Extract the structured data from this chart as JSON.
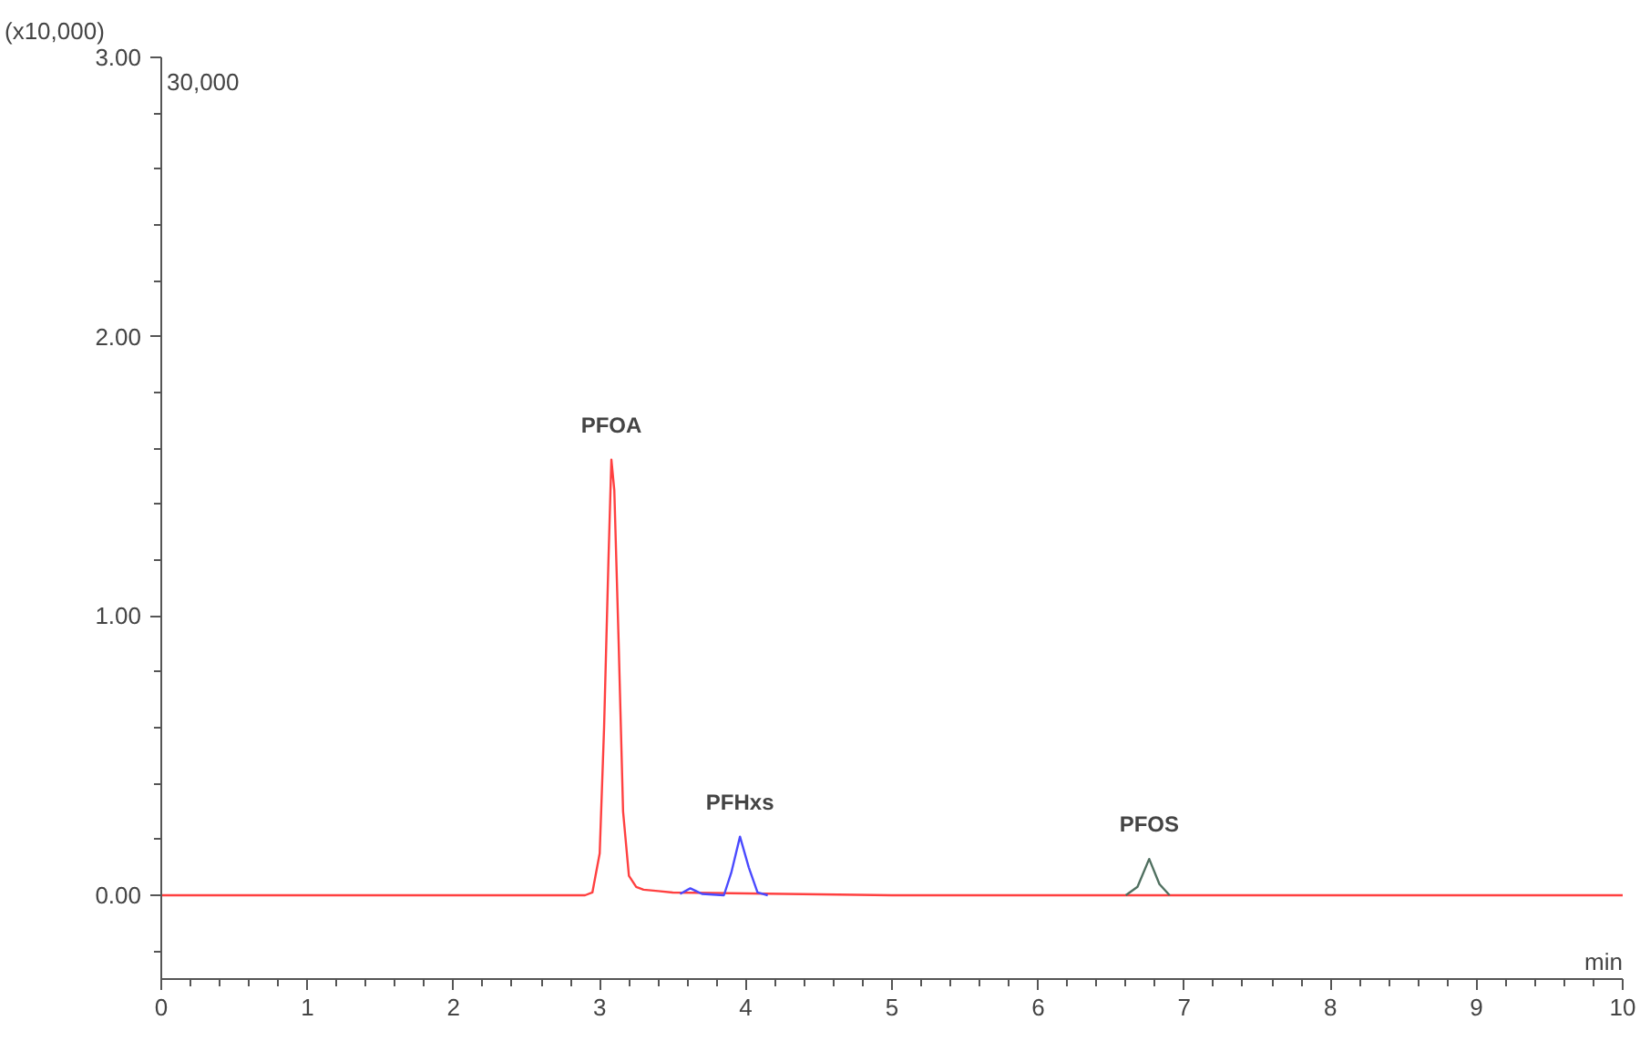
{
  "chart_data": {
    "type": "line",
    "xlabel": "min",
    "annotations": [
      "(x10,000)",
      "30,000"
    ],
    "xlim": [
      0,
      10
    ],
    "ylim": [
      -0.3,
      3.0
    ],
    "xticks": [
      0,
      1,
      2,
      3,
      4,
      5,
      6,
      7,
      8,
      9,
      10,
      {
        "value": 0.2,
        "label": null
      },
      {
        "value": 0.4,
        "label": null
      },
      {
        "value": 0.6,
        "label": null
      },
      {
        "value": 0.8,
        "label": null
      },
      {
        "value": 1.2,
        "label": null
      },
      {
        "value": 1.4,
        "label": null
      },
      {
        "value": 1.6,
        "label": null
      },
      {
        "value": 1.8,
        "label": null
      },
      {
        "value": 2.2,
        "label": null
      },
      {
        "value": 2.4,
        "label": null
      },
      {
        "value": 2.6,
        "label": null
      },
      {
        "value": 2.8,
        "label": null
      },
      {
        "value": 3.2,
        "label": null
      },
      {
        "value": 3.4,
        "label": null
      },
      {
        "value": 3.6,
        "label": null
      },
      {
        "value": 3.8,
        "label": null
      },
      {
        "value": 4.2,
        "label": null
      },
      {
        "value": 4.4,
        "label": null
      },
      {
        "value": 4.6,
        "label": null
      },
      {
        "value": 4.8,
        "label": null
      },
      {
        "value": 5.2,
        "label": null
      },
      {
        "value": 5.4,
        "label": null
      },
      {
        "value": 5.6,
        "label": null
      },
      {
        "value": 5.8,
        "label": null
      },
      {
        "value": 6.2,
        "label": null
      },
      {
        "value": 6.4,
        "label": null
      },
      {
        "value": 6.6,
        "label": null
      },
      {
        "value": 6.8,
        "label": null
      },
      {
        "value": 7.2,
        "label": null
      },
      {
        "value": 7.4,
        "label": null
      },
      {
        "value": 7.6,
        "label": null
      },
      {
        "value": 7.8,
        "label": null
      },
      {
        "value": 8.2,
        "label": null
      },
      {
        "value": 8.4,
        "label": null
      },
      {
        "value": 8.6,
        "label": null
      },
      {
        "value": 8.8,
        "label": null
      },
      {
        "value": 9.2,
        "label": null
      },
      {
        "value": 9.4,
        "label": null
      },
      {
        "value": 9.6,
        "label": null
      },
      {
        "value": 9.8,
        "label": null
      }
    ],
    "yticks": [
      {
        "value": 0,
        "label": "0.00"
      },
      {
        "value": 1,
        "label": "1.00"
      },
      {
        "value": 2,
        "label": "2.00"
      },
      {
        "value": 3,
        "label": "3.00"
      },
      {
        "value": -0.2,
        "label": null
      },
      {
        "value": 0.2,
        "label": null
      },
      {
        "value": 0.4,
        "label": null
      },
      {
        "value": 0.6,
        "label": null
      },
      {
        "value": 0.8,
        "label": null
      },
      {
        "value": 1.2,
        "label": null
      },
      {
        "value": 1.4,
        "label": null
      },
      {
        "value": 1.6,
        "label": null
      },
      {
        "value": 1.8,
        "label": null
      },
      {
        "value": 2.2,
        "label": null
      },
      {
        "value": 2.4,
        "label": null
      },
      {
        "value": 2.6,
        "label": null
      },
      {
        "value": 2.8,
        "label": null
      }
    ],
    "grid": false,
    "marker": "none",
    "line_style": "solid",
    "series": [
      {
        "name": "PFOA",
        "color": "#ff4040",
        "x": [
          0,
          1,
          2,
          2.9,
          2.95,
          3.0,
          3.03,
          3.06,
          3.08,
          3.1,
          3.13,
          3.16,
          3.2,
          3.25,
          3.3,
          3.4,
          3.5,
          5,
          6,
          7,
          8,
          9,
          10
        ],
        "values": [
          0,
          0,
          0,
          0,
          0.01,
          0.15,
          0.6,
          1.2,
          1.56,
          1.45,
          0.9,
          0.3,
          0.07,
          0.03,
          0.02,
          0.015,
          0.01,
          0,
          0,
          0,
          0,
          0,
          0
        ]
      },
      {
        "name": "PFHxs",
        "color": "#4a4aff",
        "x": [
          3.55,
          3.62,
          3.7,
          3.85,
          3.9,
          3.96,
          4.02,
          4.08,
          4.15
        ],
        "values": [
          0.005,
          0.025,
          0.005,
          0,
          0.08,
          0.21,
          0.1,
          0.01,
          0
        ]
      },
      {
        "name": "PFOS",
        "color": "#507060",
        "x": [
          6.6,
          6.68,
          6.76,
          6.83,
          6.9
        ],
        "values": [
          0,
          0.03,
          0.13,
          0.04,
          0
        ]
      }
    ]
  }
}
